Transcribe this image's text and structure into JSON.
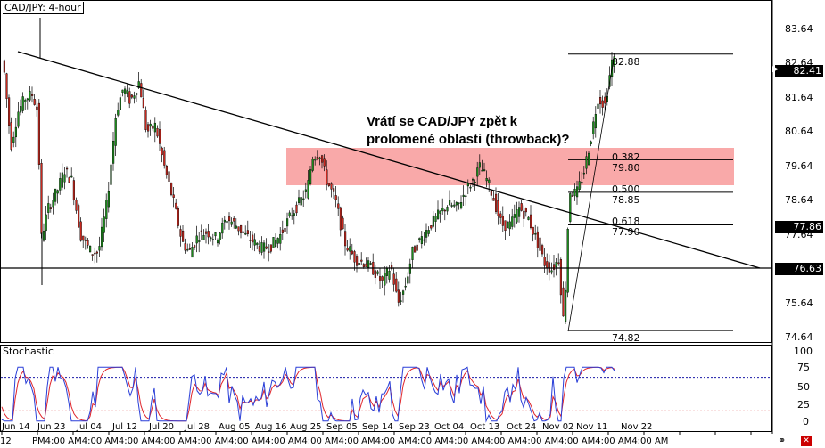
{
  "title": "CAD/JPY: 4-hour",
  "annotation_line1": "Vrátí se CAD/JPY zpět k",
  "annotation_line2": "prolomené oblasti (throwback)?",
  "indicator_title": "Stochastic",
  "price_axis": [
    "83.64",
    "82.64",
    "81.64",
    "80.64",
    "79.64",
    "78.64",
    "77.64",
    "76.64",
    "75.64",
    "74.64"
  ],
  "price_tags": {
    "current": "82.41",
    "level1": "77.86",
    "level2": "76.63"
  },
  "fib": {
    "high": "82.88",
    "low": "74.82",
    "l382": "0.382",
    "v382": "79.80",
    "l500": "0.500",
    "v500": "78.85",
    "l618": "0.618",
    "v618": "77.90"
  },
  "stoch_axis": [
    "100",
    "75",
    "50",
    "25",
    "0"
  ],
  "x_dates": [
    "Jun 14",
    "Jun 23",
    "Jul 04",
    "Jul 12",
    "Jul 20",
    "Jul 28",
    "Aug 05",
    "Aug 16",
    "Aug 25",
    "Sep 05",
    "Sep 14",
    "Sep 23",
    "Oct 04",
    "Oct 13",
    "Oct 24",
    "Nov 02",
    "Nov 11",
    "Nov 22"
  ],
  "x_bottom": "PM4:00 AM4:00 AM4:00 AM4:00 AM4:00 AM4:00 AM4:00 AM4:00 AM4:00 AM4:00 AM4:00 AM4:00 AM4:00 AM4:00 AM4:00 AM4:00 AM4:00 AM",
  "x_bottom_left": "12",
  "colors": {
    "zone": "#f8a0a0",
    "bull": "#1b8a1b",
    "bear": "#c8281e",
    "stoch_k": "#2a3fd8",
    "stoch_d": "#e0242a",
    "dots_top": "#1a1aa8",
    "dots_bottom": "#d01010"
  }
}
